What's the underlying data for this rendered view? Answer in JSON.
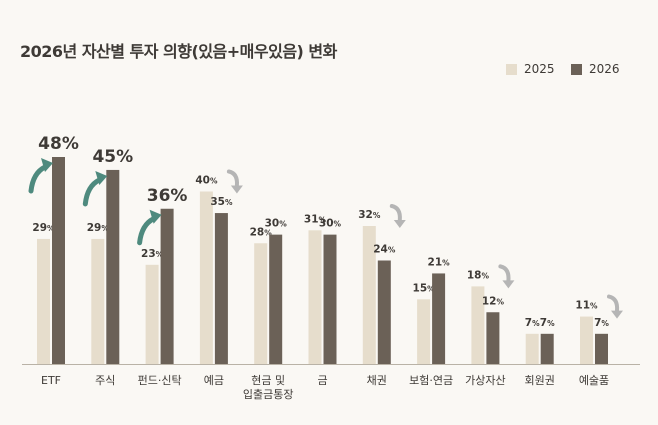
{
  "chart_data": {
    "type": "bar",
    "title": "2026년 자산별 투자 의향(있음+매우있음) 변화",
    "categories": [
      "ETF",
      "주식",
      "펀드·신탁",
      "예금",
      "현금 및\n입출금통장",
      "금",
      "채권",
      "보험·연금",
      "가상자산",
      "회원권",
      "예술품"
    ],
    "series": [
      {
        "name": "2025",
        "values": [
          29,
          29,
          23,
          40,
          28,
          31,
          32,
          15,
          18,
          7,
          11
        ]
      },
      {
        "name": "2026",
        "values": [
          48,
          45,
          36,
          35,
          30,
          30,
          24,
          21,
          12,
          7,
          7
        ]
      }
    ],
    "value_unit": "%",
    "highlighted_values": [
      "48%",
      "45%",
      "36%"
    ],
    "trend_arrows": [
      "up",
      "up",
      "up",
      "down",
      "none",
      "none",
      "down",
      "none",
      "down",
      "none",
      "down"
    ],
    "ylim": [
      0,
      50
    ],
    "grid": false,
    "legend_position": "top-right",
    "colors": {
      "2025": "#e6ddcc",
      "2026": "#6b6157",
      "arrow_up": "#4e8a7e",
      "arrow_down": "#b5b5b5"
    }
  }
}
